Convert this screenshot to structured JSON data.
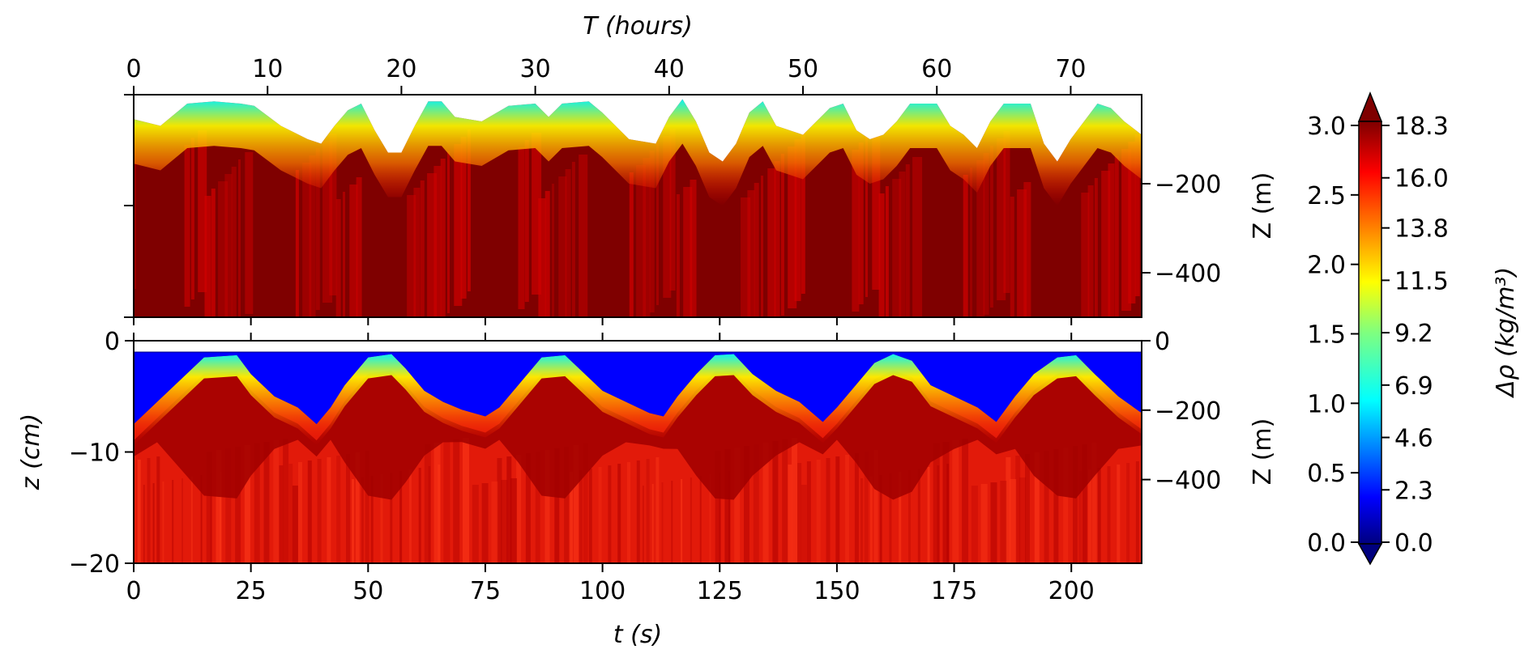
{
  "chart_data": [
    {
      "type": "heatmap",
      "panel": "top",
      "xlabel_top": "T (hours)",
      "xlim": [
        0,
        75.3
      ],
      "xticks": [
        0,
        10,
        20,
        30,
        40,
        50,
        60,
        70
      ],
      "ylabel_right": "Z (m)",
      "ylim": [
        -500,
        0
      ],
      "yticks_right": [
        -200,
        -400
      ],
      "envelope_depth_m": [
        [
          0,
          -55
        ],
        [
          2,
          -70
        ],
        [
          4,
          -20
        ],
        [
          6,
          -15
        ],
        [
          8,
          -20
        ],
        [
          9,
          -25
        ],
        [
          11,
          -70
        ],
        [
          13,
          -100
        ],
        [
          14,
          -110
        ],
        [
          15,
          -70
        ],
        [
          16,
          -35
        ],
        [
          17,
          -20
        ],
        [
          18,
          -80
        ],
        [
          19,
          -130
        ],
        [
          20,
          -130
        ],
        [
          21,
          -70
        ],
        [
          22,
          -15
        ],
        [
          23,
          -15
        ],
        [
          24,
          -50
        ],
        [
          26,
          -60
        ],
        [
          28,
          -25
        ],
        [
          30,
          -20
        ],
        [
          31,
          -50
        ],
        [
          32,
          -20
        ],
        [
          34,
          -15
        ],
        [
          35,
          -40
        ],
        [
          37,
          -100
        ],
        [
          39,
          -110
        ],
        [
          40,
          -50
        ],
        [
          41,
          -10
        ],
        [
          42,
          -60
        ],
        [
          43,
          -130
        ],
        [
          44,
          -150
        ],
        [
          45,
          -110
        ],
        [
          46,
          -40
        ],
        [
          47,
          -15
        ],
        [
          48,
          -70
        ],
        [
          50,
          -90
        ],
        [
          52,
          -30
        ],
        [
          53,
          -20
        ],
        [
          54,
          -80
        ],
        [
          55,
          -100
        ],
        [
          56,
          -90
        ],
        [
          57,
          -60
        ],
        [
          58,
          -20
        ],
        [
          60,
          -20
        ],
        [
          61,
          -70
        ],
        [
          62,
          -90
        ],
        [
          63,
          -120
        ],
        [
          64,
          -60
        ],
        [
          65,
          -20
        ],
        [
          67,
          -20
        ],
        [
          68,
          -110
        ],
        [
          69,
          -150
        ],
        [
          70,
          -100
        ],
        [
          72,
          -20
        ],
        [
          73,
          -30
        ],
        [
          74,
          -60
        ],
        [
          75.3,
          -90
        ]
      ]
    },
    {
      "type": "heatmap",
      "panel": "bottom",
      "xlabel": "t (s)",
      "xlim": [
        0,
        215
      ],
      "xticks": [
        0,
        25,
        50,
        75,
        100,
        125,
        150,
        175,
        200
      ],
      "ylabel": "z (cm)",
      "ylim": [
        -20,
        0
      ],
      "yticks": [
        0,
        -10,
        -20
      ],
      "ylabel_right": "Z (m)",
      "yticks_right": [
        0,
        -200,
        -400
      ],
      "interface_depth_cm": [
        [
          0,
          -7.5
        ],
        [
          5,
          -5.5
        ],
        [
          10,
          -3.5
        ],
        [
          15,
          -1.5
        ],
        [
          22,
          -1.3
        ],
        [
          25,
          -3
        ],
        [
          30,
          -5
        ],
        [
          35,
          -6
        ],
        [
          39,
          -7.5
        ],
        [
          42,
          -6
        ],
        [
          45,
          -4
        ],
        [
          50,
          -1.5
        ],
        [
          55,
          -1.2
        ],
        [
          58,
          -2.5
        ],
        [
          62,
          -4.5
        ],
        [
          66,
          -5.5
        ],
        [
          70,
          -6.2
        ],
        [
          75,
          -6.8
        ],
        [
          78,
          -6
        ],
        [
          82,
          -4
        ],
        [
          87,
          -1.5
        ],
        [
          92,
          -1.3
        ],
        [
          95,
          -2.5
        ],
        [
          100,
          -4.5
        ],
        [
          105,
          -5.5
        ],
        [
          110,
          -6.5
        ],
        [
          113,
          -6.8
        ],
        [
          116,
          -5
        ],
        [
          120,
          -3
        ],
        [
          124,
          -1.3
        ],
        [
          128,
          -1.2
        ],
        [
          132,
          -3
        ],
        [
          137,
          -4.5
        ],
        [
          142,
          -5.5
        ],
        [
          147,
          -7.3
        ],
        [
          150,
          -6
        ],
        [
          154,
          -4
        ],
        [
          158,
          -2
        ],
        [
          162,
          -1.2
        ],
        [
          166,
          -1.8
        ],
        [
          170,
          -4
        ],
        [
          175,
          -5
        ],
        [
          180,
          -6
        ],
        [
          184,
          -7.3
        ],
        [
          188,
          -5
        ],
        [
          192,
          -3
        ],
        [
          197,
          -1.5
        ],
        [
          201,
          -1.3
        ],
        [
          205,
          -3
        ],
        [
          210,
          -5
        ],
        [
          215,
          -6.5
        ]
      ]
    }
  ],
  "colorbar": {
    "label": "Δρ (kg/m³)",
    "ticks_left": [
      "3.0",
      "2.5",
      "2.0",
      "1.5",
      "1.0",
      "0.5",
      "0.0"
    ],
    "ticks_right": [
      "18.3",
      "16.0",
      "13.8",
      "11.5",
      "9.2",
      "6.9",
      "4.6",
      "2.3",
      "0.0"
    ],
    "colormap": [
      "#00007f",
      "#0000ff",
      "#007fff",
      "#00ffff",
      "#7fff7f",
      "#ffff00",
      "#ff7f00",
      "#ff0000",
      "#7f0000"
    ]
  }
}
